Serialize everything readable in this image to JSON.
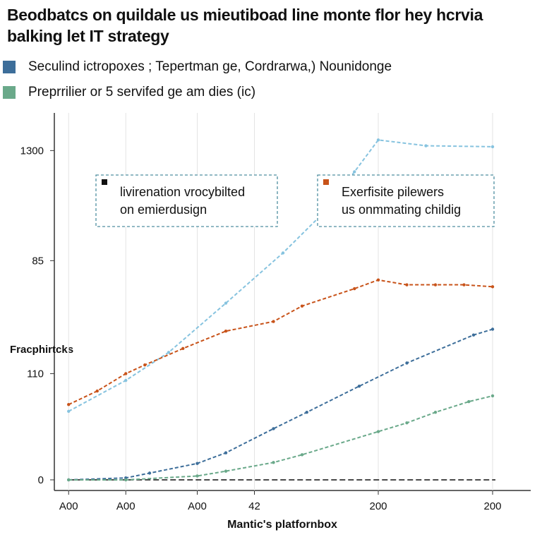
{
  "chart_data": {
    "type": "line",
    "title": [
      "Beodbatcs on quildale us mieutiboad line monte flor hey hcrvia",
      "balking let IT strategy"
    ],
    "xlabel": "Mantic's platfornbox",
    "ylabel": "Fracphirtcks",
    "xlim": [
      0,
      100
    ],
    "ylim": [
      -11,
      380
    ],
    "xticks": [
      {
        "value": 3,
        "label": "A00"
      },
      {
        "value": 15,
        "label": "A00"
      },
      {
        "value": 30,
        "label": "A00"
      },
      42,
      {
        "value": 68,
        "label": "200"
      },
      {
        "value": 92,
        "label": "200"
      }
    ],
    "yticks": [
      0,
      110,
      {
        "value": 227,
        "label": "85"
      },
      {
        "value": 341,
        "label": "1300"
      }
    ],
    "grid": true,
    "series": [
      {
        "name": "Seculind ictropoxes ; Tepertman ge, Cordrarwa,) Nounidonge",
        "color": "#3d6e9a",
        "x": [
          3,
          15,
          20,
          30,
          36,
          46,
          53,
          64,
          74,
          88,
          92
        ],
        "values": [
          0,
          2,
          7,
          17,
          28,
          53,
          70,
          97,
          121,
          150,
          156
        ]
      },
      {
        "name": "Preprrilier or 5 servifed ge am dies (ic)",
        "color": "#6aa98a",
        "x": [
          3,
          15,
          30,
          36,
          46,
          52,
          68,
          74,
          80,
          87,
          92
        ],
        "values": [
          0,
          0,
          4,
          9,
          18,
          26,
          50,
          59,
          70,
          81,
          87
        ]
      },
      {
        "color": "#86c3df",
        "x": [
          3,
          15,
          24,
          36,
          48,
          57,
          63,
          68,
          78,
          92
        ],
        "values": [
          71,
          103,
          132,
          183,
          235,
          279,
          319,
          352,
          346,
          345
        ]
      },
      {
        "color": "#c8531a",
        "x": [
          3,
          9,
          15,
          19,
          27,
          36,
          46,
          52,
          63,
          68,
          74,
          80,
          86,
          92
        ],
        "values": [
          78,
          92,
          110,
          119,
          136,
          154,
          164,
          180,
          198,
          207,
          202,
          202,
          202,
          200
        ]
      }
    ],
    "reference_line": {
      "value": 0,
      "color": "#222"
    },
    "annotations": [
      {
        "text": [
          "livirenation vrocybilted",
          "on emierdusign"
        ],
        "color": "#111"
      },
      {
        "text": [
          "Exerfisite pilewers",
          "us onmmating childig"
        ],
        "color": "#c8531a"
      }
    ]
  }
}
